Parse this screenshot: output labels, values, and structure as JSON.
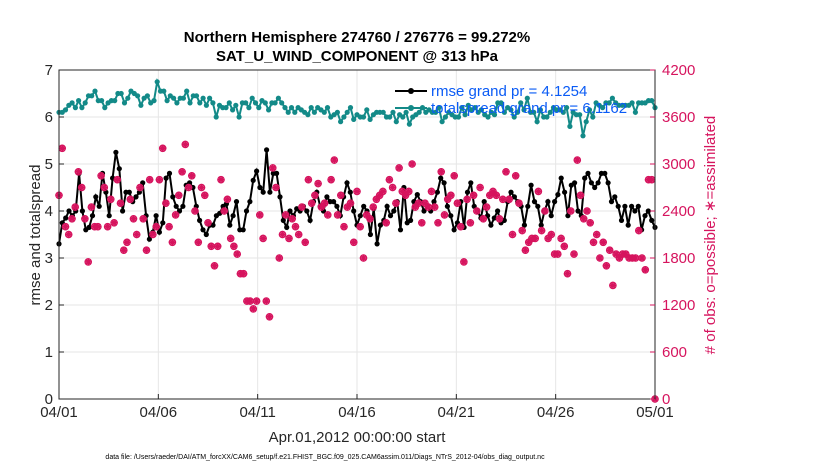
{
  "chart_data": {
    "type": "line",
    "title": "Northern Hemisphere 274760 / 276776 = 99.272%",
    "subtitle": "SAT_U_WIND_COMPONENT @ 313 hPa",
    "xlabel": "Apr.01,2012 00:00:00 start",
    "ylabel_left": "rmse and totalspread",
    "ylabel_right": "# of obs: o=possible; ∗=assimilated",
    "x_ticks": [
      "04/01",
      "04/06",
      "04/11",
      "04/16",
      "04/21",
      "04/26",
      "05/01"
    ],
    "x_range_days": [
      0,
      30
    ],
    "y_left_range": [
      0,
      7
    ],
    "y_left_ticks": [
      "0",
      "1",
      "2",
      "3",
      "4",
      "5",
      "6",
      "7"
    ],
    "y_right_range": [
      0,
      4200
    ],
    "y_right_ticks": [
      "0",
      "600",
      "1200",
      "1800",
      "2400",
      "3000",
      "3600",
      "4200"
    ],
    "footnote": "data file: /Users/raeder/DAI/ATM_forcXX/CAM6_setup/f.e21.FHIST_BGC.f09_025.CAM6assim.011/Diags_NTrS_2012-04/obs_diag_output.nc",
    "colors": {
      "rmse": "#000000",
      "spread": "#138a88",
      "obs": "#d6145e",
      "right_axis": "#d6145e",
      "legend_text": "#0a5bf5"
    },
    "series": [
      {
        "name": "rmse grand pr = 4.1254",
        "axis": "left",
        "marker": "dot",
        "values": [
          3.3,
          3.75,
          3.85,
          4.0,
          3.9,
          4.0,
          4.8,
          4.0,
          3.6,
          3.65,
          3.9,
          4.3,
          4.1,
          4.8,
          4.4,
          3.9,
          4.7,
          5.25,
          4.9,
          4.0,
          4.4,
          4.4,
          4.2,
          4.3,
          4.4,
          4.6,
          3.9,
          3.4,
          3.55,
          3.9,
          3.55,
          3.75,
          4.7,
          4.8,
          4.3,
          4.1,
          4.0,
          4.1,
          4.55,
          4.6,
          4.5,
          4.1,
          3.8,
          3.6,
          3.5,
          3.7,
          3.7,
          3.9,
          3.95,
          4.1,
          4.15,
          3.7,
          3.9,
          4.2,
          3.6,
          3.6,
          4.0,
          4.2,
          4.65,
          4.85,
          4.5,
          4.4,
          5.3,
          4.4,
          4.8,
          4.8,
          4.3,
          3.8,
          3.65,
          4.0,
          3.9,
          4.05,
          4.0,
          4.1,
          4.0,
          3.8,
          4.2,
          4.4,
          4.1,
          4.0,
          4.3,
          4.2,
          4.2,
          4.1,
          3.9,
          4.3,
          4.6,
          4.4,
          4.0,
          3.7,
          3.9,
          4.1,
          4.0,
          3.5,
          4.05,
          3.3,
          3.7,
          3.8,
          4.1,
          3.9,
          4.0,
          4.2,
          3.6,
          4.5,
          3.75,
          3.8,
          4.2,
          4.35,
          4.2,
          4.0,
          4.1,
          4.0,
          4.2,
          4.4,
          4.7,
          4.6,
          4.1,
          3.9,
          3.6,
          3.75,
          4.2,
          3.65,
          4.4,
          4.6,
          4.1,
          4.0,
          3.85,
          4.2,
          3.9,
          3.7,
          3.85,
          4.0,
          3.75,
          3.8,
          4.2,
          4.4,
          4.3,
          4.2,
          4.1,
          3.7,
          4.1,
          4.55,
          4.2,
          4.1,
          3.7,
          4.0,
          4.2,
          3.9,
          4.2,
          4.35,
          4.7,
          4.4,
          3.9,
          4.55,
          4.6,
          4.0,
          3.9,
          4.7,
          4.8,
          4.6,
          4.5,
          4.6,
          4.8,
          4.8,
          4.6,
          4.2,
          4.3,
          4.1,
          3.8,
          4.1,
          3.7,
          4.1,
          4.0,
          4.1,
          3.6,
          3.9,
          4.0,
          3.8,
          3.65
        ]
      },
      {
        "name": "totalspread grand pr = 6.1162",
        "axis": "left",
        "marker": "dot",
        "values": [
          6.1,
          6.1,
          6.15,
          6.25,
          6.3,
          6.2,
          6.35,
          6.2,
          6.3,
          6.45,
          6.45,
          6.55,
          6.35,
          6.35,
          6.2,
          6.3,
          6.35,
          6.35,
          6.5,
          6.5,
          6.3,
          6.4,
          6.55,
          6.5,
          6.45,
          6.25,
          6.4,
          6.45,
          6.3,
          6.35,
          6.75,
          6.55,
          6.55,
          6.35,
          6.45,
          6.4,
          6.3,
          6.4,
          6.4,
          6.55,
          6.3,
          6.45,
          6.45,
          6.3,
          6.4,
          6.25,
          6.4,
          6.3,
          6.0,
          6.25,
          6.2,
          6.2,
          6.3,
          6.15,
          6.25,
          6.0,
          6.3,
          6.3,
          6.2,
          6.4,
          6.3,
          6.2,
          6.35,
          6.3,
          6.15,
          6.3,
          6.3,
          6.4,
          6.3,
          6.2,
          6.1,
          6.2,
          6.1,
          6.2,
          6.15,
          6.1,
          6.05,
          6.2,
          6.1,
          6.2,
          6.15,
          6.1,
          6.2,
          6.0,
          6.05,
          6.1,
          5.9,
          6.0,
          6.1,
          6.2,
          5.95,
          6.05,
          6.0,
          6.0,
          6.15,
          5.95,
          6.05,
          6.1,
          6.1,
          6.1,
          6.0,
          6.0,
          6.1,
          5.9,
          6.05,
          6.0,
          6.1,
          5.85,
          6.0,
          6.05,
          6.1,
          6.2,
          6.1,
          6.15,
          6.1,
          6.1,
          6.2,
          5.9,
          6.0,
          6.1,
          6.05,
          6.0,
          6.0,
          6.2,
          6.05,
          6.25,
          6.15,
          6.2,
          6.1,
          6.15,
          6.05,
          6.0,
          6.1,
          6.05,
          6.3,
          6.3,
          6.1,
          6.2,
          6.15,
          6.0,
          6.1,
          6.3,
          6.15,
          6.4,
          6.1,
          6.1,
          5.9,
          6.15,
          6.0,
          6.0,
          6.1,
          6.2,
          6.15,
          6.15,
          6.1,
          6.2,
          5.8,
          6.1,
          6.05,
          6.05,
          5.6,
          5.9,
          6.15,
          6.0,
          6.3,
          6.25,
          6.2,
          6.3,
          6.3,
          6.4,
          6.3,
          6.25,
          6.25,
          6.25,
          6.25,
          6.3,
          6.1,
          6.3,
          6.3,
          6.3,
          6.35,
          6.35,
          6.2
        ]
      },
      {
        "name": "obs possible",
        "axis": "right",
        "marker": "o",
        "values": [
          2600,
          3200,
          2200,
          2100,
          2300,
          2450,
          2900,
          2700,
          2300,
          1750,
          2450,
          2200,
          2200,
          2850,
          2700,
          2200,
          2550,
          2250,
          2800,
          2500,
          1900,
          2000,
          2550,
          2300,
          2100,
          2700,
          2300,
          1900,
          2800,
          2100,
          2200,
          2800,
          3200,
          2500,
          2200,
          2000,
          2350,
          2600,
          2900,
          3250,
          2700,
          2850,
          2400,
          2000,
          2700,
          2600,
          2250,
          1950,
          1700,
          1950,
          2800,
          2400,
          2550,
          2050,
          1950,
          1850,
          1600,
          1600,
          1250,
          1250,
          1150,
          1250,
          2350,
          2050,
          1250,
          1050,
          2950,
          2700,
          1800,
          2100,
          2350,
          2050,
          2300,
          2200,
          2100,
          2450,
          2000,
          2800,
          2500,
          2600,
          2750,
          2450,
          2500,
          2350,
          2800,
          3050,
          2350,
          2600,
          2200,
          2450,
          2500,
          2000,
          2650,
          2200,
          1800,
          2350,
          2300,
          2450,
          2550,
          2600,
          2650,
          2250,
          2800,
          2700,
          2500,
          2950,
          2650,
          2600,
          2650,
          3000,
          2450,
          2500,
          2250,
          2500,
          2450,
          2650,
          2450,
          2250,
          2900,
          2350,
          2550,
          2600,
          2850,
          2500,
          2200,
          1750,
          2550,
          2250,
          2600,
          2400,
          2700,
          2300,
          2450,
          2600,
          2650,
          2600,
          2300,
          2550,
          2900,
          2550,
          2100,
          2850,
          2500,
          2150,
          1900,
          2000,
          2050,
          2050,
          2650,
          2150,
          2400,
          2050,
          2100,
          1850,
          1850,
          2050,
          1950,
          1600,
          2400,
          1850,
          3050,
          2600,
          2300,
          2400,
          2250,
          2000,
          2100,
          1800,
          2000,
          1700,
          1900,
          1450,
          1850,
          1800,
          1850,
          1850,
          1800,
          1800,
          1800,
          2150,
          1800,
          1650,
          2800,
          2800,
          0
        ]
      },
      {
        "name": "obs assimilated",
        "axis": "right",
        "marker": "*",
        "values": [
          2600,
          3200,
          2200,
          2100,
          2300,
          2450,
          2900,
          2700,
          2300,
          1750,
          2450,
          2200,
          2200,
          2850,
          2700,
          2200,
          2550,
          2250,
          2800,
          2500,
          1900,
          2000,
          2550,
          2300,
          2100,
          2700,
          2300,
          1900,
          2800,
          2100,
          2200,
          2800,
          3200,
          2500,
          2200,
          2000,
          2350,
          2600,
          2900,
          3250,
          2700,
          2850,
          2400,
          2000,
          2700,
          2600,
          2250,
          1950,
          1700,
          1950,
          2800,
          2400,
          2550,
          2050,
          1950,
          1850,
          1600,
          1600,
          1250,
          1250,
          1150,
          1250,
          2350,
          2050,
          1250,
          1050,
          2950,
          2700,
          1800,
          2100,
          2350,
          2050,
          2300,
          2200,
          2100,
          2450,
          2000,
          2800,
          2500,
          2600,
          2750,
          2450,
          2500,
          2350,
          2800,
          3050,
          2350,
          2600,
          2200,
          2450,
          2500,
          2000,
          2650,
          2200,
          1800,
          2350,
          2300,
          2450,
          2550,
          2600,
          2650,
          2250,
          2800,
          2700,
          2500,
          2950,
          2650,
          2600,
          2650,
          3000,
          2450,
          2500,
          2250,
          2500,
          2450,
          2650,
          2450,
          2250,
          2900,
          2350,
          2550,
          2600,
          2850,
          2500,
          2200,
          1750,
          2550,
          2250,
          2600,
          2400,
          2700,
          2300,
          2450,
          2600,
          2650,
          2600,
          2300,
          2550,
          2900,
          2550,
          2100,
          2850,
          2500,
          2150,
          1900,
          2000,
          2050,
          2050,
          2650,
          2150,
          2400,
          2050,
          2100,
          1850,
          1850,
          2050,
          1950,
          1600,
          2400,
          1850,
          3050,
          2600,
          2300,
          2400,
          2250,
          2000,
          2100,
          1800,
          2000,
          1700,
          1900,
          1450,
          1850,
          1800,
          1850,
          1850,
          1800,
          1800,
          1800,
          2150,
          1800,
          1650,
          2800,
          2800,
          0
        ]
      }
    ]
  }
}
